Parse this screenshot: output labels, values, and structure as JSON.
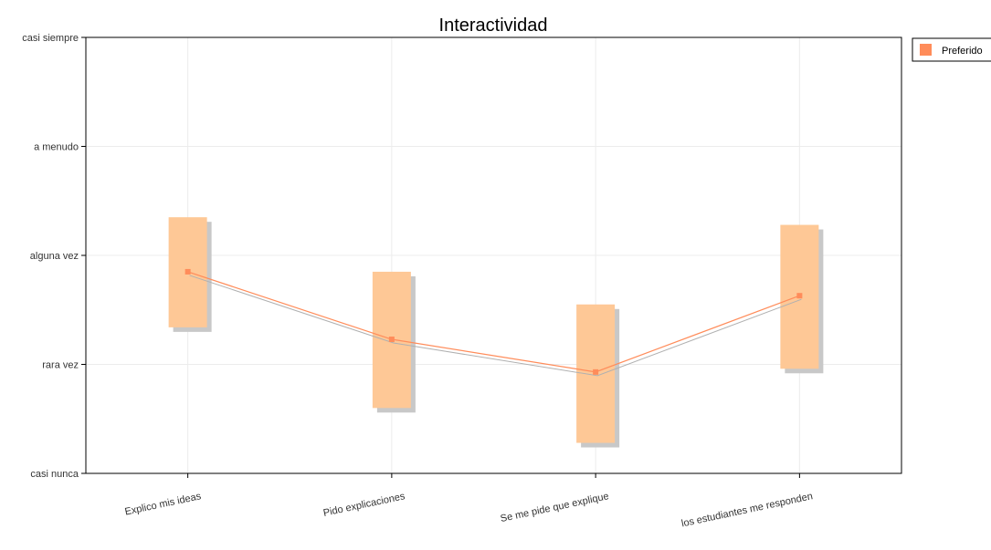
{
  "chart_data": {
    "type": "line",
    "title": "Interactividad",
    "xlabel": "",
    "ylabel": "",
    "categories": [
      "Explico mis ideas",
      "Pido explicaciones",
      "Se me pide que explique",
      "los estudiantes me responden"
    ],
    "y_tick_labels": [
      "casi nunca",
      "rara vez",
      "alguna vez",
      "a menudo",
      "casi siempre"
    ],
    "ylim": [
      1,
      5
    ],
    "grid": true,
    "legend_position": "top-right",
    "series": [
      {
        "name": "Preferido",
        "values": [
          2.85,
          2.23,
          1.93,
          2.63
        ],
        "low": [
          2.34,
          1.6,
          1.28,
          1.96
        ],
        "high": [
          3.35,
          2.85,
          2.55,
          3.28
        ],
        "color": "#ff8c5a",
        "range_color": "#fec896"
      }
    ],
    "shadow_color": "#c8c8c8"
  }
}
